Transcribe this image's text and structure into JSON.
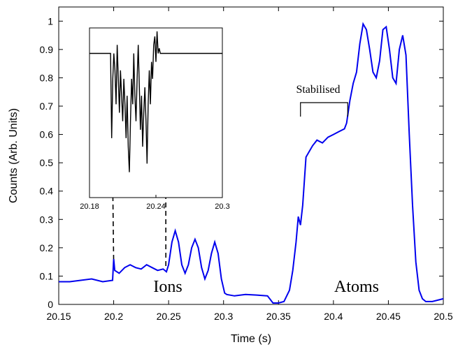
{
  "chart_data": {
    "type": "line",
    "xlabel": "Time (s)",
    "ylabel": "Counts (Arb. Units)",
    "xlim": [
      20.15,
      20.5
    ],
    "ylim": [
      0,
      1.05
    ],
    "xticks": [
      "20.15",
      "20.2",
      "20.25",
      "20.3",
      "20.35",
      "20.4",
      "20.45",
      "20.5"
    ],
    "yticks": [
      "0",
      "0.1",
      "0.2",
      "0.3",
      "0.4",
      "0.5",
      "0.6",
      "0.7",
      "0.8",
      "0.9",
      "1"
    ],
    "grid": false,
    "series": [
      {
        "color": "#0000ee",
        "x": [
          20.15,
          20.16,
          20.17,
          20.18,
          20.19,
          20.199,
          20.2,
          20.201,
          20.205,
          20.21,
          20.215,
          20.22,
          20.225,
          20.23,
          20.235,
          20.24,
          20.245,
          20.248,
          20.25,
          20.253,
          20.256,
          20.259,
          20.262,
          20.265,
          20.268,
          20.271,
          20.274,
          20.277,
          20.28,
          20.283,
          20.286,
          20.289,
          20.292,
          20.295,
          20.298,
          20.301,
          20.303,
          20.31,
          20.32,
          20.33,
          20.34,
          20.345,
          20.35,
          20.355,
          20.36,
          20.363,
          20.366,
          20.368,
          20.37,
          20.372,
          20.375,
          20.378,
          20.381,
          20.385,
          20.39,
          20.395,
          20.4,
          20.405,
          20.41,
          20.412,
          20.415,
          20.418,
          20.421,
          20.424,
          20.427,
          20.43,
          20.433,
          20.436,
          20.439,
          20.442,
          20.445,
          20.448,
          20.451,
          20.454,
          20.457,
          20.46,
          20.463,
          20.466,
          20.469,
          20.472,
          20.475,
          20.478,
          20.481,
          20.484,
          20.487,
          20.49,
          20.495,
          20.5
        ],
        "values": [
          0.08,
          0.08,
          0.085,
          0.09,
          0.08,
          0.085,
          0.16,
          0.12,
          0.11,
          0.13,
          0.14,
          0.13,
          0.125,
          0.14,
          0.13,
          0.12,
          0.125,
          0.115,
          0.14,
          0.22,
          0.26,
          0.22,
          0.14,
          0.11,
          0.14,
          0.2,
          0.23,
          0.2,
          0.13,
          0.09,
          0.12,
          0.18,
          0.22,
          0.18,
          0.09,
          0.04,
          0.035,
          0.03,
          0.035,
          0.033,
          0.03,
          0.005,
          0.005,
          0.01,
          0.05,
          0.12,
          0.22,
          0.31,
          0.28,
          0.35,
          0.52,
          0.54,
          0.56,
          0.58,
          0.57,
          0.59,
          0.6,
          0.61,
          0.62,
          0.64,
          0.72,
          0.78,
          0.82,
          0.92,
          0.99,
          0.97,
          0.9,
          0.82,
          0.8,
          0.86,
          0.97,
          0.98,
          0.9,
          0.8,
          0.78,
          0.9,
          0.95,
          0.88,
          0.6,
          0.35,
          0.15,
          0.05,
          0.02,
          0.01,
          0.01,
          0.01,
          0.015,
          0.02
        ]
      }
    ],
    "inset": {
      "xticks": [
        "20.18",
        "20.24",
        "20.3"
      ],
      "xlim": [
        20.18,
        20.3
      ],
      "color": "#000000",
      "x": [
        20.18,
        20.19,
        20.195,
        20.198,
        20.199,
        20.2,
        20.201,
        20.202,
        20.203,
        20.204,
        20.205,
        20.206,
        20.207,
        20.208,
        20.209,
        20.21,
        20.211,
        20.212,
        20.213,
        20.214,
        20.215,
        20.216,
        20.217,
        20.218,
        20.219,
        20.22,
        20.221,
        20.222,
        20.223,
        20.224,
        20.225,
        20.226,
        20.227,
        20.228,
        20.229,
        20.23,
        20.231,
        20.232,
        20.233,
        20.234,
        20.235,
        20.236,
        20.237,
        20.238,
        20.239,
        20.24,
        20.241,
        20.242,
        20.243,
        20.244,
        20.245,
        20.246,
        20.247,
        20.248,
        20.25,
        20.26,
        20.27,
        20.28,
        20.29,
        20.3
      ],
      "values": [
        0.85,
        0.85,
        0.85,
        0.85,
        0.85,
        0.35,
        0.7,
        0.85,
        0.75,
        0.55,
        0.9,
        0.7,
        0.5,
        0.75,
        0.6,
        0.45,
        0.7,
        0.55,
        0.35,
        0.6,
        0.3,
        0.15,
        0.45,
        0.7,
        0.55,
        0.85,
        0.6,
        0.45,
        0.7,
        0.9,
        0.65,
        0.4,
        0.6,
        0.3,
        0.5,
        0.65,
        0.45,
        0.2,
        0.55,
        0.75,
        0.55,
        0.8,
        0.7,
        0.9,
        0.95,
        0.8,
        0.98,
        0.85,
        0.88,
        0.85,
        0.85,
        0.85,
        0.85,
        0.85,
        0.85,
        0.85,
        0.85,
        0.85,
        0.85,
        0.85
      ]
    },
    "annotations": {
      "ions": "Ions",
      "atoms": "Atoms",
      "stabilised": "Stabilised",
      "stabilised_range": [
        20.37,
        20.413
      ]
    }
  }
}
